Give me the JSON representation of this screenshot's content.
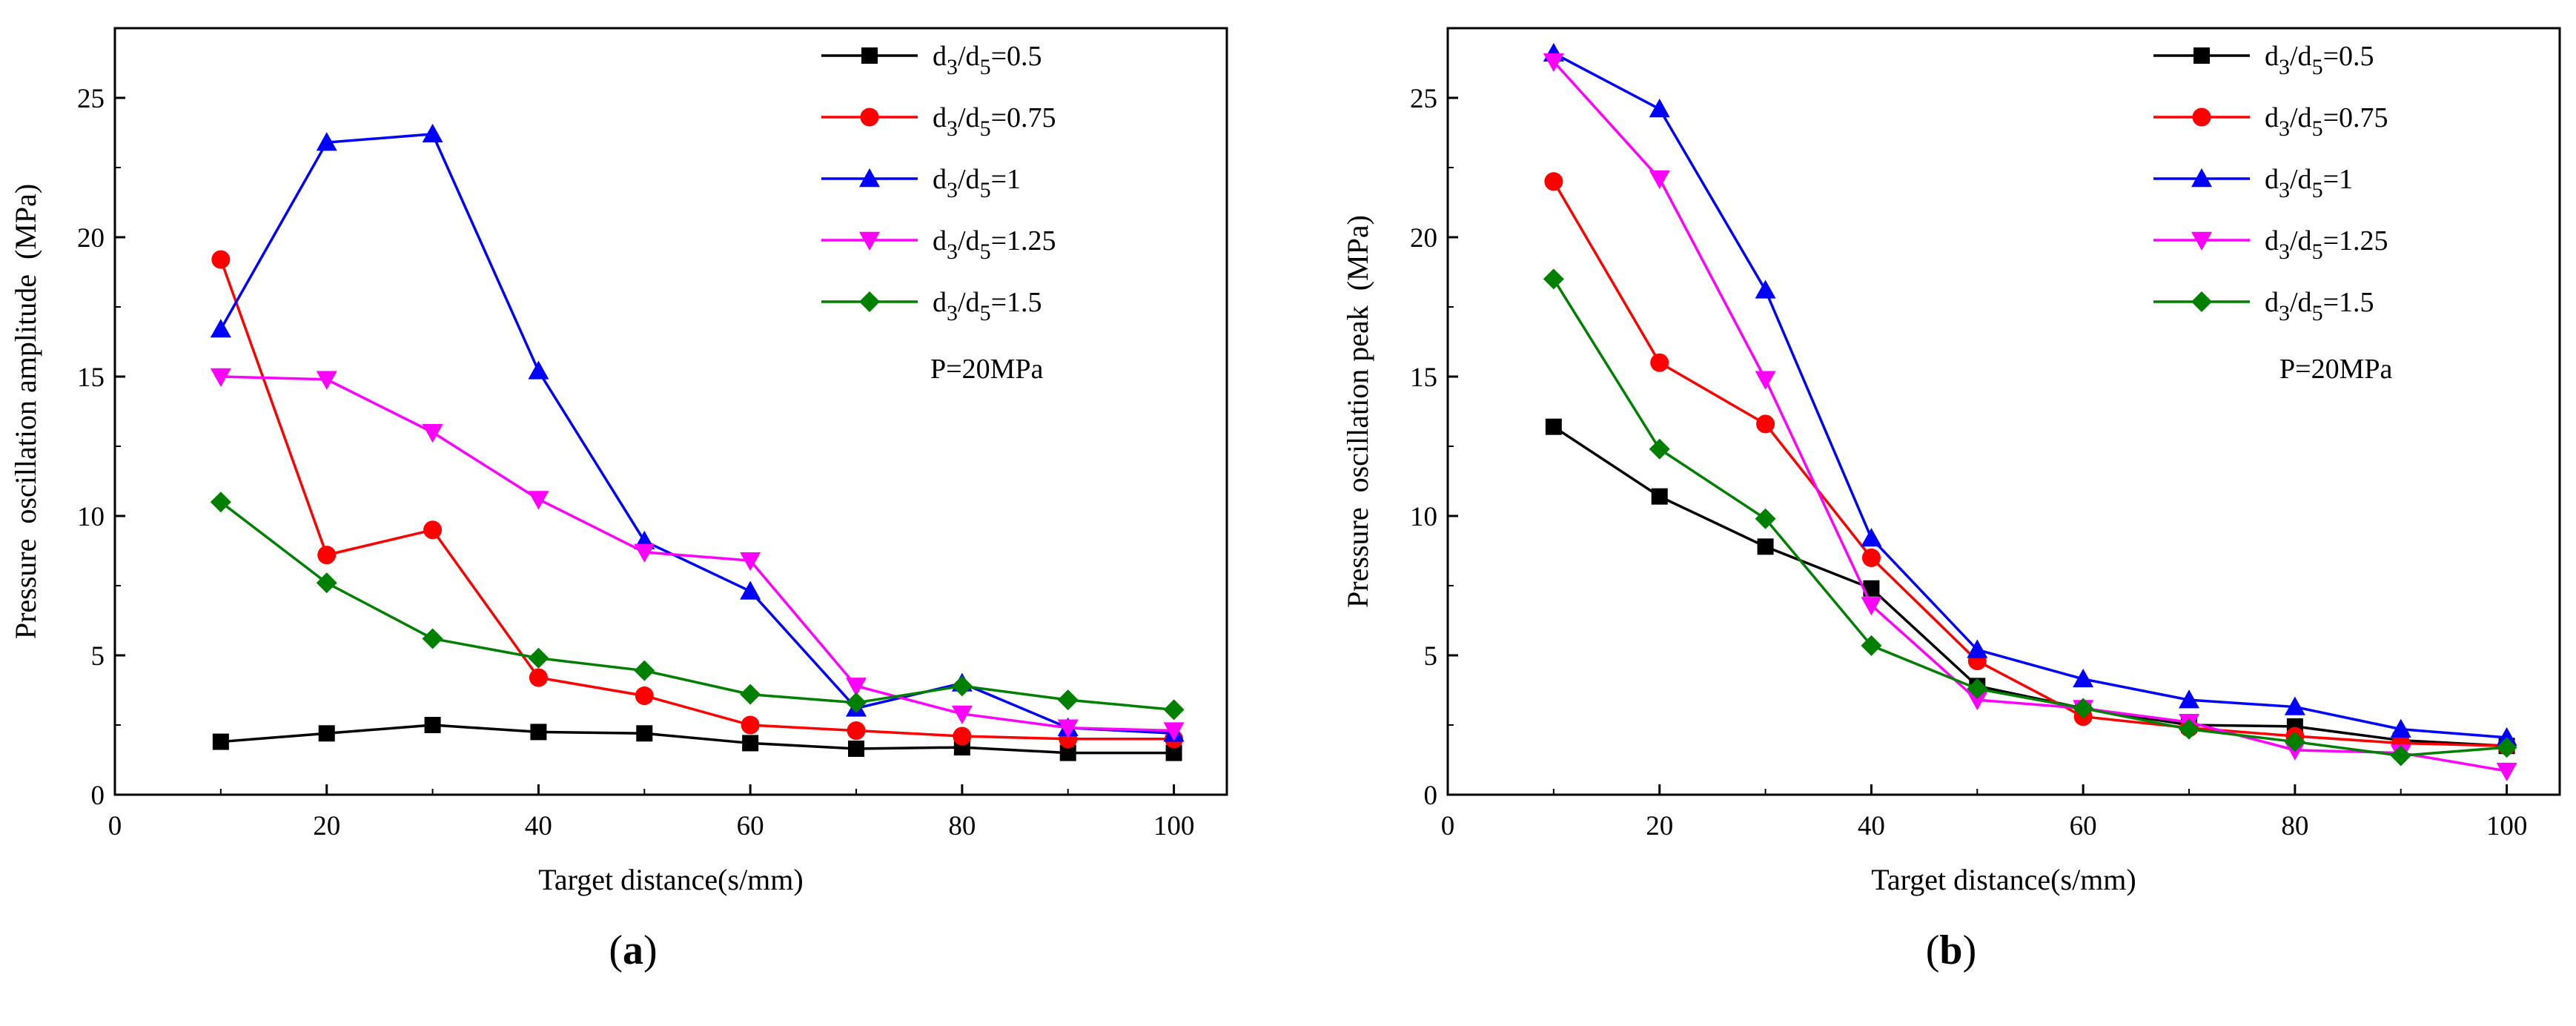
{
  "chart_data": [
    {
      "panel": "(a)",
      "panel_letter": "a",
      "type": "line",
      "xlabel": "Target distance(s/mm)",
      "ylabel": "Pressure  oscillation amplitude  (MPa)",
      "xlim": [
        0,
        105
      ],
      "ylim": [
        0,
        27.5
      ],
      "xticks": [
        0,
        20,
        40,
        60,
        80,
        100
      ],
      "yticks": [
        0,
        5,
        10,
        15,
        20,
        25
      ],
      "annotation": "P=20MPa",
      "legend_position": "top-right",
      "x": [
        10,
        20,
        30,
        40,
        50,
        60,
        70,
        80,
        90,
        100
      ],
      "series": [
        {
          "name": "d3/d5=0.5",
          "label": {
            "a": "d",
            "s1": "3",
            "b": "/d",
            "s2": "5",
            "c": "=0.5"
          },
          "color": "#000000",
          "marker": "square",
          "values": [
            1.9,
            2.2,
            2.5,
            2.25,
            2.2,
            1.85,
            1.65,
            1.7,
            1.5,
            1.5
          ]
        },
        {
          "name": "d3/d5=0.75",
          "label": {
            "a": "d",
            "s1": "3",
            "b": "/d",
            "s2": "5",
            "c": "=0.75"
          },
          "color": "#ff0000",
          "marker": "circle",
          "values": [
            19.2,
            8.6,
            9.5,
            4.2,
            3.55,
            2.5,
            2.3,
            2.1,
            2.0,
            2.0
          ]
        },
        {
          "name": "d3/d5=1",
          "label": {
            "a": "d",
            "s1": "3",
            "b": "/d",
            "s2": "5",
            "c": "=1"
          },
          "color": "#0000ff",
          "marker": "triangle-up",
          "values": [
            16.7,
            23.4,
            23.7,
            15.2,
            9.1,
            7.3,
            3.1,
            4.0,
            2.4,
            2.2
          ]
        },
        {
          "name": "d3/d5=1.25",
          "label": {
            "a": "d",
            "s1": "3",
            "b": "/d",
            "s2": "5",
            "c": "=1.25"
          },
          "color": "#ff00ff",
          "marker": "triangle-down",
          "values": [
            15.0,
            14.9,
            13.0,
            10.6,
            8.7,
            8.4,
            3.9,
            2.9,
            2.4,
            2.3
          ]
        },
        {
          "name": "d3/d5=1.5",
          "label": {
            "a": "d",
            "s1": "3",
            "b": "/d",
            "s2": "5",
            "c": "=1.5"
          },
          "color": "#008000",
          "marker": "diamond",
          "values": [
            10.5,
            7.6,
            5.6,
            4.9,
            4.45,
            3.6,
            3.3,
            3.9,
            3.4,
            3.05
          ]
        }
      ]
    },
    {
      "panel": "(b)",
      "panel_letter": "b",
      "type": "line",
      "xlabel": "Target distance(s/mm)",
      "ylabel": "Pressure  oscillation peak  (MPa)",
      "xlim": [
        0,
        105
      ],
      "ylim": [
        0,
        27.5
      ],
      "xticks": [
        0,
        20,
        40,
        60,
        80,
        100
      ],
      "yticks": [
        0,
        5,
        10,
        15,
        20,
        25
      ],
      "annotation": "P=20MPa",
      "legend_position": "top-right",
      "x": [
        10,
        20,
        30,
        40,
        50,
        60,
        70,
        80,
        90,
        100
      ],
      "series": [
        {
          "name": "d3/d5=0.5",
          "label": {
            "a": "d",
            "s1": "3",
            "b": "/d",
            "s2": "5",
            "c": "=0.5"
          },
          "color": "#000000",
          "marker": "square",
          "values": [
            13.2,
            10.7,
            8.9,
            7.4,
            3.9,
            3.1,
            2.5,
            2.45,
            1.95,
            1.75
          ]
        },
        {
          "name": "d3/d5=0.75",
          "label": {
            "a": "d",
            "s1": "3",
            "b": "/d",
            "s2": "5",
            "c": "=0.75"
          },
          "color": "#ff0000",
          "marker": "circle",
          "values": [
            22.0,
            15.5,
            13.3,
            8.5,
            4.8,
            2.8,
            2.4,
            2.1,
            1.85,
            1.75
          ]
        },
        {
          "name": "d3/d5=1",
          "label": {
            "a": "d",
            "s1": "3",
            "b": "/d",
            "s2": "5",
            "c": "=1"
          },
          "color": "#0000ff",
          "marker": "triangle-up",
          "values": [
            26.6,
            24.6,
            18.1,
            9.2,
            5.2,
            4.15,
            3.4,
            3.15,
            2.35,
            2.05
          ]
        },
        {
          "name": "d3/d5=1.25",
          "label": {
            "a": "d",
            "s1": "3",
            "b": "/d",
            "s2": "5",
            "c": "=1.25"
          },
          "color": "#ff00ff",
          "marker": "triangle-down",
          "values": [
            26.3,
            22.1,
            14.9,
            6.8,
            3.4,
            3.1,
            2.6,
            1.6,
            1.5,
            0.85
          ]
        },
        {
          "name": "d3/d5=1.5",
          "label": {
            "a": "d",
            "s1": "3",
            "b": "/d",
            "s2": "5",
            "c": "=1.5"
          },
          "color": "#008000",
          "marker": "diamond",
          "values": [
            18.5,
            12.4,
            9.9,
            5.35,
            3.8,
            3.1,
            2.35,
            1.9,
            1.4,
            1.7
          ]
        }
      ]
    }
  ]
}
